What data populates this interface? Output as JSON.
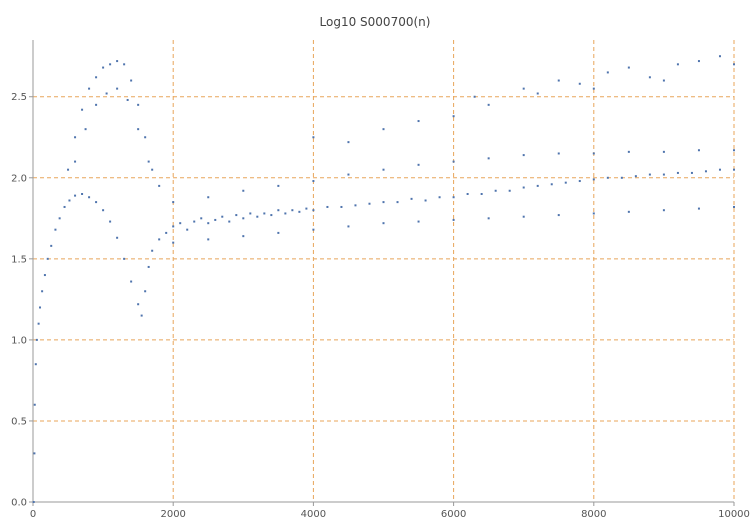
{
  "chart_data": {
    "type": "scatter",
    "title": "Log10 S000700(n)",
    "xlabel": "",
    "ylabel": "",
    "xlim": [
      0,
      10000
    ],
    "ylim": [
      0,
      2.85
    ],
    "x_ticks": [
      0,
      2000,
      4000,
      6000,
      8000,
      10000
    ],
    "x_tick_labels": [
      "0",
      "2000",
      "4000",
      "6000",
      "8000",
      "10000"
    ],
    "y_ticks": [
      0.0,
      0.5,
      1.0,
      1.5,
      2.0,
      2.5
    ],
    "y_tick_labels": [
      "0.0",
      "0.5",
      "1.0",
      "1.5",
      "2.0",
      "2.5"
    ],
    "grid": true,
    "grid_color": "#e8a55a",
    "point_color": "#4f74ad",
    "frame_color": "#999999",
    "series": [
      {
        "points": [
          [
            10,
            0.0
          ],
          [
            20,
            0.3
          ],
          [
            25,
            0.6
          ],
          [
            40,
            0.85
          ],
          [
            55,
            1.0
          ],
          [
            80,
            1.1
          ],
          [
            100,
            1.2
          ],
          [
            130,
            1.3
          ],
          [
            170,
            1.4
          ],
          [
            210,
            1.5
          ],
          [
            260,
            1.58
          ],
          [
            320,
            1.68
          ],
          [
            380,
            1.75
          ],
          [
            450,
            1.82
          ],
          [
            520,
            1.86
          ],
          [
            600,
            1.89
          ],
          [
            700,
            1.9
          ],
          [
            800,
            1.88
          ],
          [
            900,
            1.85
          ],
          [
            1000,
            1.8
          ],
          [
            1100,
            1.73
          ],
          [
            1200,
            1.63
          ],
          [
            1300,
            1.5
          ],
          [
            1400,
            1.36
          ],
          [
            1500,
            1.22
          ],
          [
            1550,
            1.15
          ],
          [
            1600,
            1.3
          ],
          [
            1650,
            1.45
          ],
          [
            1700,
            1.55
          ],
          [
            1800,
            1.62
          ],
          [
            1900,
            1.66
          ],
          [
            500,
            2.05
          ],
          [
            600,
            2.25
          ],
          [
            700,
            2.42
          ],
          [
            800,
            2.55
          ],
          [
            900,
            2.62
          ],
          [
            1000,
            2.68
          ],
          [
            1100,
            2.7
          ],
          [
            1200,
            2.72
          ],
          [
            1300,
            2.7
          ],
          [
            1400,
            2.6
          ],
          [
            1500,
            2.45
          ],
          [
            1600,
            2.25
          ],
          [
            1700,
            2.05
          ],
          [
            1800,
            1.95
          ],
          [
            600,
            2.1
          ],
          [
            750,
            2.3
          ],
          [
            900,
            2.45
          ],
          [
            1050,
            2.52
          ],
          [
            1200,
            2.55
          ],
          [
            1350,
            2.48
          ],
          [
            1500,
            2.3
          ],
          [
            1650,
            2.1
          ],
          [
            2000,
            1.7
          ],
          [
            2100,
            1.72
          ],
          [
            2200,
            1.68
          ],
          [
            2300,
            1.73
          ],
          [
            2400,
            1.75
          ],
          [
            2500,
            1.72
          ],
          [
            2600,
            1.74
          ],
          [
            2700,
            1.76
          ],
          [
            2800,
            1.73
          ],
          [
            2900,
            1.77
          ],
          [
            3000,
            1.75
          ],
          [
            3100,
            1.78
          ],
          [
            3200,
            1.76
          ],
          [
            3300,
            1.78
          ],
          [
            3400,
            1.77
          ],
          [
            3500,
            1.8
          ],
          [
            3600,
            1.78
          ],
          [
            3700,
            1.8
          ],
          [
            3800,
            1.79
          ],
          [
            3900,
            1.81
          ],
          [
            4000,
            1.8
          ],
          [
            4200,
            1.82
          ],
          [
            4400,
            1.82
          ],
          [
            4600,
            1.83
          ],
          [
            4800,
            1.84
          ],
          [
            5000,
            1.85
          ],
          [
            5200,
            1.85
          ],
          [
            5400,
            1.87
          ],
          [
            5600,
            1.86
          ],
          [
            5800,
            1.88
          ],
          [
            6000,
            1.88
          ],
          [
            6200,
            1.9
          ],
          [
            6400,
            1.9
          ],
          [
            6600,
            1.92
          ],
          [
            6800,
            1.92
          ],
          [
            7000,
            1.94
          ],
          [
            7200,
            1.95
          ],
          [
            7400,
            1.96
          ],
          [
            7600,
            1.97
          ],
          [
            7800,
            1.98
          ],
          [
            8000,
            1.99
          ],
          [
            8200,
            2.0
          ],
          [
            8400,
            2.0
          ],
          [
            8600,
            2.01
          ],
          [
            8800,
            2.02
          ],
          [
            9000,
            2.02
          ],
          [
            9200,
            2.03
          ],
          [
            9400,
            2.03
          ],
          [
            9600,
            2.04
          ],
          [
            9800,
            2.05
          ],
          [
            10000,
            2.05
          ],
          [
            2000,
            1.6
          ],
          [
            2500,
            1.62
          ],
          [
            3000,
            1.64
          ],
          [
            3500,
            1.66
          ],
          [
            4000,
            1.68
          ],
          [
            4500,
            1.7
          ],
          [
            5000,
            1.72
          ],
          [
            5500,
            1.73
          ],
          [
            6000,
            1.74
          ],
          [
            6500,
            1.75
          ],
          [
            7000,
            1.76
          ],
          [
            7500,
            1.77
          ],
          [
            8000,
            1.78
          ],
          [
            8500,
            1.79
          ],
          [
            9000,
            1.8
          ],
          [
            9500,
            1.81
          ],
          [
            10000,
            1.82
          ],
          [
            2000,
            1.85
          ],
          [
            2500,
            1.88
          ],
          [
            3000,
            1.92
          ],
          [
            3500,
            1.95
          ],
          [
            4000,
            1.98
          ],
          [
            4500,
            2.02
          ],
          [
            5000,
            2.05
          ],
          [
            5500,
            2.08
          ],
          [
            6000,
            2.1
          ],
          [
            6500,
            2.12
          ],
          [
            7000,
            2.14
          ],
          [
            7500,
            2.15
          ],
          [
            8000,
            2.15
          ],
          [
            8500,
            2.16
          ],
          [
            9000,
            2.16
          ],
          [
            9500,
            2.17
          ],
          [
            10000,
            2.17
          ],
          [
            4000,
            2.25
          ],
          [
            4500,
            2.22
          ],
          [
            5000,
            2.3
          ],
          [
            5500,
            2.35
          ],
          [
            6000,
            2.38
          ],
          [
            6300,
            2.5
          ],
          [
            6500,
            2.45
          ],
          [
            7000,
            2.55
          ],
          [
            7200,
            2.52
          ],
          [
            7500,
            2.6
          ],
          [
            7800,
            2.58
          ],
          [
            8000,
            2.55
          ],
          [
            8200,
            2.65
          ],
          [
            8500,
            2.68
          ],
          [
            8800,
            2.62
          ],
          [
            9000,
            2.6
          ],
          [
            9200,
            2.7
          ],
          [
            9500,
            2.72
          ],
          [
            9800,
            2.75
          ],
          [
            10000,
            2.7
          ]
        ]
      }
    ]
  }
}
